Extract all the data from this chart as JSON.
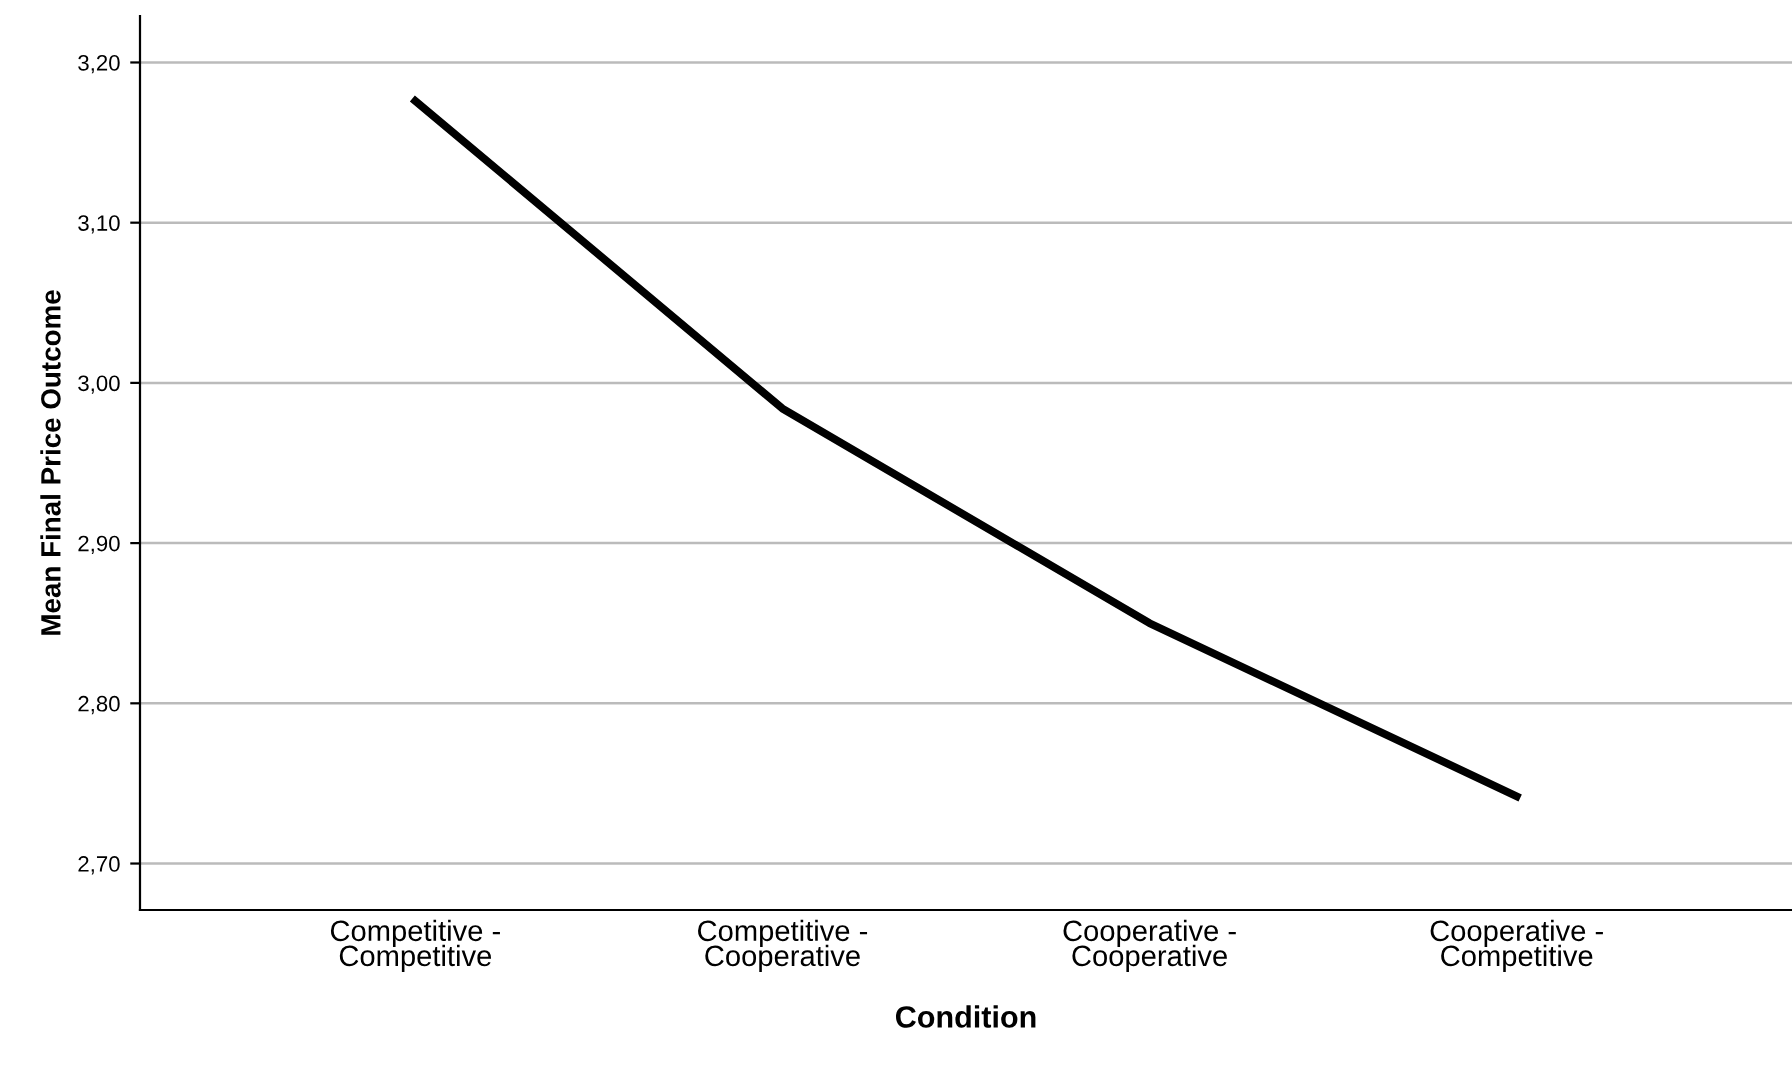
{
  "chart_data": {
    "type": "line",
    "xlabel": "Condition",
    "ylabel": "Mean Final Price Outcome",
    "categories": [
      "Competitive -\nCompetitive",
      "Competitive -\nCooperative",
      "Cooperative -\nCooperative",
      "Cooperative -\nCompetitive"
    ],
    "series": [
      {
        "color": "#000000",
        "values": [
          3.176,
          2.984,
          2.85,
          2.742
        ]
      }
    ],
    "ylim": [
      2.671,
      3.229
    ],
    "yticks": [
      {
        "value": 2.7,
        "label": "2,70"
      },
      {
        "value": 2.8,
        "label": "2,80"
      },
      {
        "value": 2.9,
        "label": "2,90"
      },
      {
        "value": 3.0,
        "label": "3,00"
      },
      {
        "value": 3.1,
        "label": "3,10"
      },
      {
        "value": 3.2,
        "label": "3,20"
      }
    ],
    "grid": "y",
    "marker": "none",
    "line_style": "solid",
    "legend": false
  }
}
